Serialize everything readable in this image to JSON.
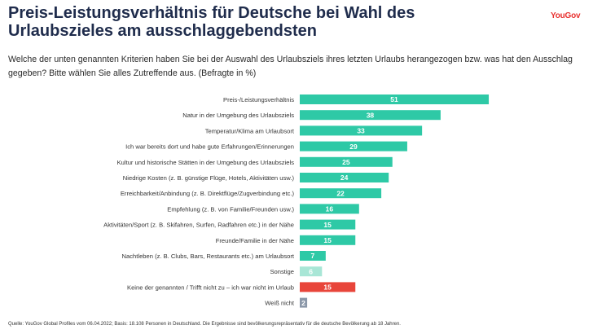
{
  "brand": "YouGov",
  "title": "Preis-Leistungsverhältnis für Deutsche bei Wahl des Urlaubszieles am ausschlaggebendsten",
  "subtitle": "Welche der unten genannten Kriterien haben Sie bei der Auswahl des Urlaubsziels ihres letzten Urlaubs herangezogen bzw. was hat den Ausschlag gegeben? Bitte wählen Sie alles Zutreffende aus. (Befragte in %)",
  "source": "Quelle: YouGov Global Profiles vom 06.04.2022; Basis: 18.108 Personen in Deutschland. Die Ergebnisse sind bevölkerungsrepräsentativ für die deutsche Bevölkerung ab 18 Jahren.",
  "colors": {
    "accent": "#2ec9a6",
    "sonstige": "#a8e6d6",
    "keine": "#e8453a",
    "weiss_nicht": "#8a97a8",
    "brand": "#e8312f",
    "title": "#1f2c4c"
  },
  "chart_data": {
    "type": "bar",
    "orientation": "horizontal",
    "xlim": [
      0,
      55
    ],
    "grid": false,
    "legend": "none",
    "categories": [
      "Preis-/Leistungsverhältnis",
      "Natur in der Umgebung des Urlaubsziels",
      "Temperatur/Klima am Urlaubsort",
      "Ich war bereits dort und habe gute Erfahrungen/Erinnerungen",
      "Kultur und historische Stätten in der Umgebung des Urlaubsziels",
      "Niedrige Kosten (z. B. günstige Flüge, Hotels, Aktivitäten usw.)",
      "Erreichbarkeit/Anbindung (z. B. Direktflüge/Zugverbindung etc.)",
      "Empfehlung (z. B. von Familie/Freunden usw.)",
      "Aktivitäten/Sport (z. B. Skifahren, Surfen, Radfahren etc.) in der Nähe",
      "Freunde/Familie in der Nähe",
      "Nachtleben (z. B. Clubs, Bars, Restaurants etc.) am Urlaubsort",
      "Sonstige",
      "Keine der genannten / Trifft nicht zu – ich war nicht im Urlaub",
      "Weiß nicht"
    ],
    "values": [
      51,
      38,
      33,
      29,
      25,
      24,
      22,
      16,
      15,
      15,
      7,
      6,
      15,
      2
    ],
    "bar_colors": [
      "#2ec9a6",
      "#2ec9a6",
      "#2ec9a6",
      "#2ec9a6",
      "#2ec9a6",
      "#2ec9a6",
      "#2ec9a6",
      "#2ec9a6",
      "#2ec9a6",
      "#2ec9a6",
      "#2ec9a6",
      "#a8e6d6",
      "#e8453a",
      "#8a97a8"
    ]
  }
}
